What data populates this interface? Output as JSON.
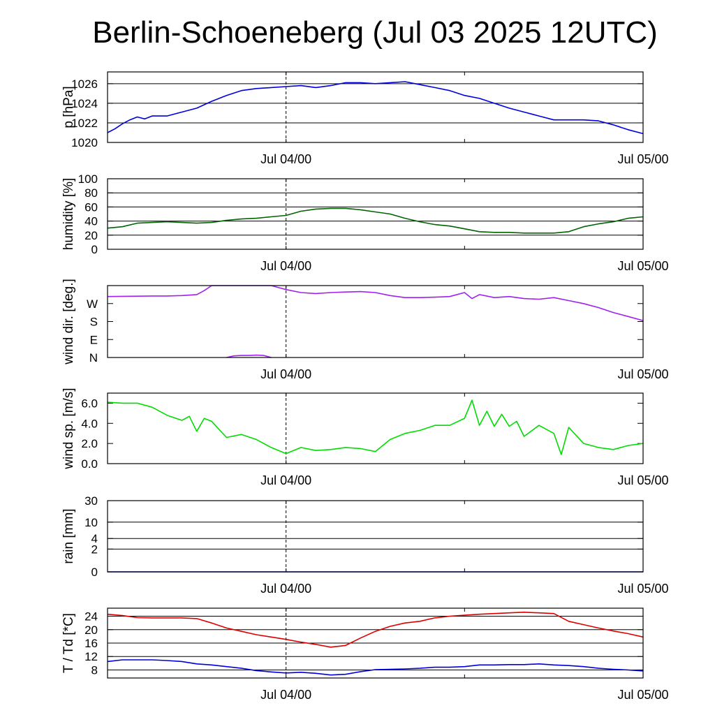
{
  "title": "Berlin-Schoeneberg (Jul 03 2025 12UTC)",
  "chart_data": [
    {
      "type": "line",
      "ylabel": "p [hPa]",
      "ylim": [
        1020,
        1027.2
      ],
      "yticks": [
        "1020",
        "1022",
        "1024",
        "1026"
      ],
      "ytick_values": [
        1020,
        1022,
        1024,
        1026
      ],
      "gridlines": [
        1020,
        1022,
        1024,
        1026
      ],
      "xtick_labels": [
        "Jul 04/00",
        "Jul 05/00"
      ],
      "xlim_hours": [
        0,
        36
      ],
      "series": [
        {
          "color": "#0000dd",
          "x": [
            0,
            0.5,
            1,
            1.5,
            2,
            2.5,
            3,
            4,
            5,
            6,
            7,
            8,
            9,
            10,
            11,
            12,
            13,
            14,
            15,
            16,
            17,
            18,
            19,
            20,
            21,
            22,
            23,
            24,
            25,
            26,
            27,
            28,
            29,
            30,
            31,
            32,
            33,
            34,
            35,
            36
          ],
          "y": [
            1021.0,
            1021.4,
            1021.9,
            1022.3,
            1022.6,
            1022.4,
            1022.7,
            1022.7,
            1023.1,
            1023.5,
            1024.2,
            1024.8,
            1025.3,
            1025.5,
            1025.6,
            1025.7,
            1025.8,
            1025.6,
            1025.8,
            1026.1,
            1026.1,
            1026.0,
            1026.1,
            1026.2,
            1025.9,
            1025.6,
            1025.3,
            1024.8,
            1024.5,
            1024.0,
            1023.5,
            1023.1,
            1022.7,
            1022.3,
            1022.3,
            1022.3,
            1022.2,
            1021.8,
            1021.3,
            1020.9
          ]
        }
      ]
    },
    {
      "type": "line",
      "ylabel": "humidity [%]",
      "ylim": [
        0,
        100
      ],
      "yticks": [
        "0",
        "20",
        "40",
        "60",
        "80",
        "100"
      ],
      "ytick_values": [
        0,
        20,
        40,
        60,
        80,
        100
      ],
      "gridlines": [
        20,
        40,
        60,
        80,
        100
      ],
      "xtick_labels": [
        "Jul 04/00",
        "Jul 05/00"
      ],
      "xlim_hours": [
        0,
        36
      ],
      "series": [
        {
          "color": "#006400",
          "x": [
            0,
            1,
            2,
            3,
            4,
            5,
            6,
            7,
            8,
            9,
            10,
            11,
            12,
            13,
            14,
            15,
            16,
            17,
            18,
            19,
            20,
            21,
            22,
            23,
            24,
            25,
            26,
            27,
            28,
            29,
            30,
            31,
            32,
            33,
            34,
            35,
            36
          ],
          "y": [
            30,
            32,
            37,
            38,
            39,
            38,
            37,
            38,
            41,
            43,
            44,
            46,
            48,
            54,
            57,
            58,
            58,
            56,
            53,
            50,
            44,
            39,
            35,
            33,
            29,
            25,
            24,
            24,
            23,
            23,
            23,
            25,
            32,
            36,
            39,
            44,
            46
          ]
        }
      ]
    },
    {
      "type": "line",
      "ylabel": "wind dir. [deg.]",
      "ylim": [
        0,
        360
      ],
      "yticks": [
        "N",
        "E",
        "S",
        "W"
      ],
      "ytick_values": [
        0,
        90,
        180,
        270
      ],
      "gridlines": [],
      "xtick_labels": [
        "Jul 04/00",
        "Jul 05/00"
      ],
      "xlim_hours": [
        0,
        36
      ],
      "series": [
        {
          "color": "#a020f0",
          "x": [
            0,
            1,
            2,
            3,
            4,
            5,
            6,
            6.5,
            7,
            8,
            9,
            10,
            11,
            11.5,
            12,
            13,
            14,
            15,
            16,
            17,
            18,
            19,
            20,
            21,
            22,
            23,
            24,
            24.5,
            25,
            26,
            27,
            28,
            29,
            30,
            31,
            32,
            33,
            34,
            35,
            36
          ],
          "y": [
            305,
            306,
            307,
            308,
            308,
            310,
            315,
            335,
            360,
            360,
            360,
            360,
            360,
            350,
            340,
            325,
            320,
            325,
            328,
            330,
            325,
            310,
            300,
            300,
            302,
            305,
            325,
            295,
            315,
            300,
            305,
            295,
            292,
            300,
            285,
            270,
            250,
            225,
            205,
            185
          ]
        },
        {
          "color": "#a020f0",
          "x": [
            8,
            8.5,
            9,
            9.5,
            10,
            10.5,
            11
          ],
          "y": [
            0,
            8,
            10,
            10,
            12,
            10,
            0
          ]
        }
      ]
    },
    {
      "type": "line",
      "ylabel": "wind sp. [m/s]",
      "ylim": [
        0,
        7
      ],
      "yticks": [
        "0.0",
        "2.0",
        "4.0",
        "6.0"
      ],
      "ytick_values": [
        0,
        2,
        4,
        6
      ],
      "gridlines": [],
      "xtick_labels": [
        "Jul 04/00",
        "Jul 05/00"
      ],
      "xlim_hours": [
        0,
        36
      ],
      "series": [
        {
          "color": "#00dd00",
          "x": [
            0,
            1,
            2,
            3,
            4,
            5,
            5.5,
            6,
            6.5,
            7,
            8,
            9,
            10,
            11,
            12,
            13,
            14,
            15,
            16,
            17,
            18,
            19,
            20,
            21,
            22,
            23,
            24,
            24.5,
            25,
            25.5,
            26,
            26.5,
            27,
            27.5,
            28,
            29,
            30,
            30.5,
            31,
            32,
            33,
            34,
            35,
            36
          ],
          "y": [
            6.1,
            6.0,
            6.0,
            5.6,
            4.8,
            4.3,
            4.7,
            3.2,
            4.5,
            4.2,
            2.6,
            2.9,
            2.4,
            1.6,
            1.0,
            1.6,
            1.3,
            1.4,
            1.6,
            1.5,
            1.2,
            2.4,
            3.0,
            3.3,
            3.8,
            3.8,
            4.5,
            6.3,
            3.8,
            5.2,
            3.7,
            4.9,
            3.7,
            4.2,
            2.7,
            3.8,
            3.0,
            0.9,
            3.6,
            2.0,
            1.6,
            1.4,
            1.8,
            2.0
          ]
        }
      ]
    },
    {
      "type": "line",
      "ylabel": "rain [mm]",
      "yscale": "log",
      "ylim": [
        0,
        30
      ],
      "yticks": [
        "0",
        "2",
        "4",
        "10",
        "30"
      ],
      "ytick_values": [
        0,
        2,
        4,
        10,
        30
      ],
      "gridlines": [
        2,
        4,
        10,
        30
      ],
      "xtick_labels": [
        "Jul 04/00",
        "Jul 05/00"
      ],
      "xlim_hours": [
        0,
        36
      ],
      "series": [
        {
          "color": "#0000dd",
          "x": [
            0,
            36
          ],
          "y": [
            0,
            0
          ]
        }
      ]
    },
    {
      "type": "line",
      "ylabel": "T / Td [*C]",
      "ylim": [
        5.6,
        26.4
      ],
      "yticks": [
        "8",
        "12",
        "16",
        "20",
        "24"
      ],
      "ytick_values": [
        8,
        12,
        16,
        20,
        24
      ],
      "gridlines": [
        8,
        12,
        16,
        20,
        24
      ],
      "xtick_labels": [
        "Jul 04/00",
        "Jul 05/00"
      ],
      "xlim_hours": [
        0,
        36
      ],
      "series": [
        {
          "color": "#dd0000",
          "x": [
            0,
            1,
            2,
            3,
            4,
            5,
            6,
            7,
            8,
            9,
            10,
            11,
            12,
            13,
            14,
            15,
            16,
            17,
            18,
            19,
            20,
            21,
            22,
            23,
            24,
            25,
            26,
            27,
            28,
            29,
            30,
            31,
            32,
            33,
            34,
            35,
            36
          ],
          "y": [
            24.6,
            24.2,
            23.6,
            23.5,
            23.5,
            23.5,
            23.3,
            22.0,
            20.5,
            19.5,
            18.5,
            17.8,
            17.1,
            16.3,
            15.6,
            14.8,
            15.3,
            17.5,
            19.5,
            21.0,
            22.0,
            22.5,
            23.5,
            24.0,
            24.3,
            24.6,
            24.8,
            25.0,
            25.2,
            25.0,
            24.8,
            22.5,
            21.5,
            20.5,
            19.6,
            18.8,
            17.8
          ]
        },
        {
          "color": "#0000dd",
          "x": [
            0,
            1,
            2,
            3,
            4,
            5,
            6,
            7,
            8,
            9,
            10,
            11,
            12,
            13,
            14,
            15,
            16,
            17,
            18,
            19,
            20,
            21,
            22,
            23,
            24,
            25,
            26,
            27,
            28,
            29,
            30,
            31,
            32,
            33,
            34,
            35,
            36
          ],
          "y": [
            10.5,
            11.0,
            11.0,
            11.0,
            10.8,
            10.5,
            9.8,
            9.5,
            9.0,
            8.5,
            7.8,
            7.4,
            7.1,
            7.3,
            7.0,
            6.5,
            6.7,
            7.5,
            8.1,
            8.2,
            8.3,
            8.5,
            8.8,
            8.8,
            9.0,
            9.5,
            9.5,
            9.6,
            9.6,
            9.8,
            9.5,
            9.3,
            9.0,
            8.5,
            8.2,
            8.0,
            7.7
          ]
        }
      ]
    }
  ]
}
